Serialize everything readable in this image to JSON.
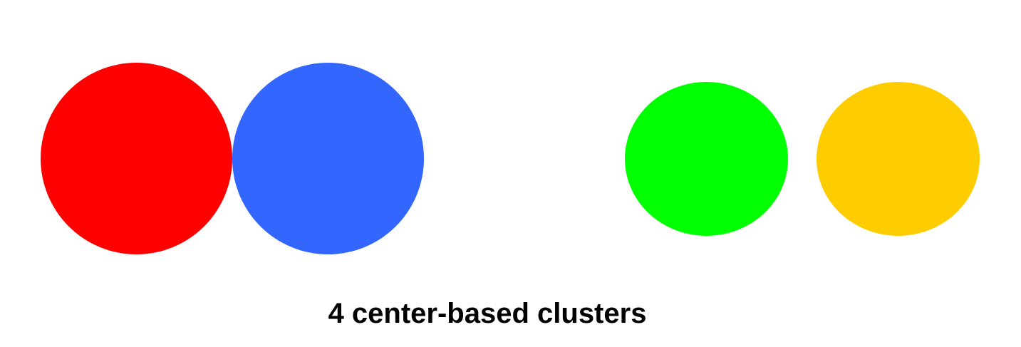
{
  "caption": "4 center-based clusters",
  "clusters": [
    {
      "id": "red",
      "color": "#ff0000"
    },
    {
      "id": "blue",
      "color": "#3366ff"
    },
    {
      "id": "green",
      "color": "#00ff00"
    },
    {
      "id": "yellow",
      "color": "#ffcc00"
    }
  ]
}
